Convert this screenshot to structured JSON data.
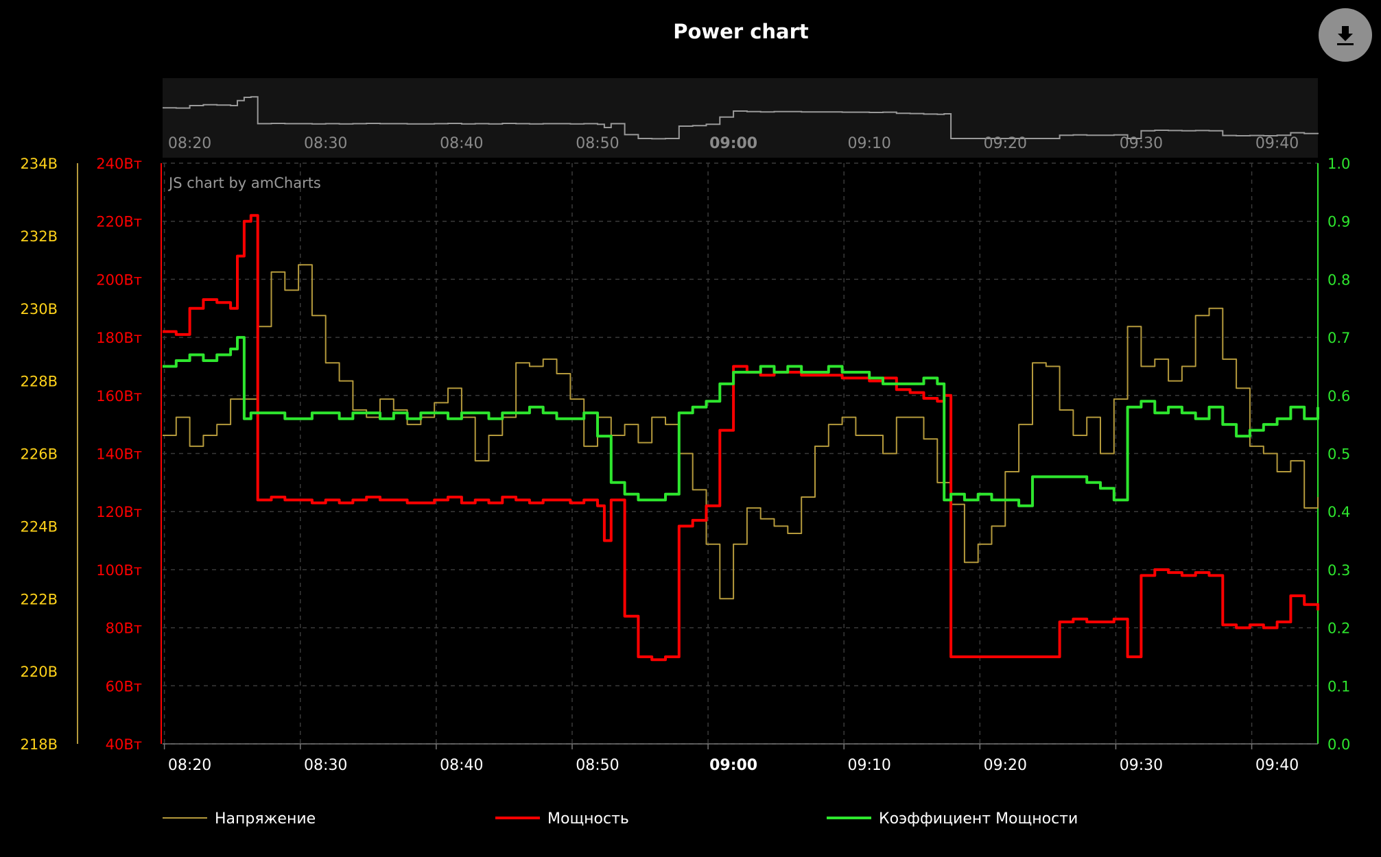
{
  "title": "Power chart",
  "credit": "JS chart by amCharts",
  "export_icon": "download-icon",
  "colors": {
    "background": "#000000",
    "voltage": "#b59a3c",
    "voltage_axis": "#ffd21a",
    "power": "#ff0000",
    "power_factor": "#2ee62e",
    "grid": "#3a3a3a",
    "scrollbar_bg": "#141414",
    "scrollbar_line": "#9a9a9a"
  },
  "chart_data": {
    "type": "line",
    "title": "Power chart",
    "x_ticks": [
      "08:20",
      "08:30",
      "08:40",
      "08:50",
      "09:00",
      "09:10",
      "09:20",
      "09:30",
      "09:40"
    ],
    "x_bold_tick": "09:00",
    "xlim": [
      "08:18",
      "09:43"
    ],
    "axes": {
      "voltage": {
        "ticks": [
          "218В",
          "220В",
          "222В",
          "224В",
          "226В",
          "228В",
          "230В",
          "232В",
          "234В"
        ],
        "ylim": [
          218,
          234
        ],
        "unit": "В"
      },
      "power": {
        "ticks": [
          "40Вт",
          "60Вт",
          "80Вт",
          "100Вт",
          "120Вт",
          "140Вт",
          "160Вт",
          "180Вт",
          "200Вт",
          "220Вт",
          "240Вт"
        ],
        "ylim": [
          40,
          240
        ],
        "unit": "Вт"
      },
      "power_factor": {
        "ticks": [
          "0.0",
          "0.1",
          "0.2",
          "0.3",
          "0.4",
          "0.5",
          "0.6",
          "0.7",
          "0.8",
          "0.9",
          "1.0"
        ],
        "ylim": [
          0,
          1
        ]
      }
    },
    "grid": true,
    "legend_position": "bottom",
    "series": [
      {
        "name": "Напряжение",
        "axis": "voltage",
        "x": [
          "08:18",
          "08:19",
          "08:20",
          "08:21",
          "08:22",
          "08:23",
          "08:24",
          "08:25",
          "08:26",
          "08:27",
          "08:28",
          "08:29",
          "08:30",
          "08:31",
          "08:32",
          "08:33",
          "08:34",
          "08:35",
          "08:36",
          "08:37",
          "08:38",
          "08:39",
          "08:40",
          "08:41",
          "08:42",
          "08:43",
          "08:44",
          "08:45",
          "08:46",
          "08:47",
          "08:48",
          "08:49",
          "08:50",
          "08:51",
          "08:52",
          "08:53",
          "08:54",
          "08:55",
          "08:56",
          "08:57",
          "08:58",
          "08:59",
          "09:00",
          "09:01",
          "09:02",
          "09:03",
          "09:04",
          "09:05",
          "09:06",
          "09:07",
          "09:08",
          "09:09",
          "09:10",
          "09:11",
          "09:12",
          "09:13",
          "09:14",
          "09:15",
          "09:16",
          "09:17",
          "09:18",
          "09:19",
          "09:20",
          "09:21",
          "09:22",
          "09:23",
          "09:24",
          "09:25",
          "09:26",
          "09:27",
          "09:28",
          "09:29",
          "09:30",
          "09:31",
          "09:32",
          "09:33",
          "09:34",
          "09:35",
          "09:36",
          "09:37",
          "09:38",
          "09:39",
          "09:40",
          "09:41",
          "09:42",
          "09:43"
        ],
        "values": [
          226.5,
          227.0,
          226.2,
          226.5,
          226.8,
          227.5,
          227.5,
          229.5,
          231.0,
          230.5,
          231.2,
          229.8,
          228.5,
          228.0,
          227.2,
          227.0,
          227.5,
          227.2,
          226.8,
          227.0,
          227.4,
          227.8,
          227.0,
          225.8,
          226.5,
          227.0,
          228.5,
          228.4,
          228.6,
          228.2,
          227.5,
          226.2,
          227.0,
          226.5,
          226.8,
          226.3,
          227.0,
          226.8,
          226.0,
          225.0,
          223.5,
          222.0,
          223.5,
          224.5,
          224.2,
          224.0,
          223.8,
          224.8,
          226.2,
          226.8,
          227.0,
          226.5,
          226.5,
          226.0,
          227.0,
          227.0,
          226.4,
          225.2,
          224.6,
          223.0,
          223.5,
          224.0,
          225.5,
          226.8,
          228.5,
          228.4,
          227.2,
          226.5,
          227.0,
          226.0,
          227.5,
          229.5,
          228.4,
          228.6,
          228.0,
          228.4,
          229.8,
          230.0,
          228.6,
          227.8,
          226.2,
          226.0,
          225.5,
          225.8,
          224.5,
          224.8
        ]
      },
      {
        "name": "Мощность",
        "axis": "power",
        "x": [
          "08:18",
          "08:19",
          "08:20",
          "08:21",
          "08:22",
          "08:23",
          "08:23.5",
          "08:24",
          "08:24.5",
          "08:25",
          "08:26",
          "08:27",
          "08:28",
          "08:29",
          "08:30",
          "08:31",
          "08:32",
          "08:33",
          "08:34",
          "08:35",
          "08:36",
          "08:37",
          "08:38",
          "08:39",
          "08:40",
          "08:41",
          "08:42",
          "08:43",
          "08:44",
          "08:45",
          "08:46",
          "08:47",
          "08:48",
          "08:49",
          "08:50",
          "08:50.5",
          "08:51",
          "08:52",
          "08:53",
          "08:54",
          "08:55",
          "08:56",
          "08:57",
          "08:58",
          "08:59",
          "09:00",
          "09:01",
          "09:02",
          "09:03",
          "09:04",
          "09:05",
          "09:06",
          "09:07",
          "09:08",
          "09:09",
          "09:10",
          "09:11",
          "09:12",
          "09:13",
          "09:14",
          "09:15",
          "09:15.5",
          "09:16",
          "09:17",
          "09:18",
          "09:19",
          "09:20",
          "09:21",
          "09:22",
          "09:23",
          "09:24",
          "09:25",
          "09:26",
          "09:27",
          "09:28",
          "09:29",
          "09:30",
          "09:31",
          "09:32",
          "09:33",
          "09:34",
          "09:35",
          "09:36",
          "09:37",
          "09:38",
          "09:39",
          "09:40",
          "09:41",
          "09:42",
          "09:43"
        ],
        "values": [
          182,
          181,
          190,
          193,
          192,
          190,
          208,
          220,
          222,
          124,
          125,
          124,
          124,
          123,
          124,
          123,
          124,
          125,
          124,
          124,
          123,
          123,
          124,
          125,
          123,
          124,
          123,
          125,
          124,
          123,
          124,
          124,
          123,
          124,
          122,
          110,
          124,
          84,
          70,
          69,
          70,
          115,
          117,
          122,
          148,
          170,
          168,
          167,
          168,
          168,
          167,
          167,
          167,
          166,
          166,
          165,
          166,
          162,
          161,
          159,
          158,
          160,
          70,
          70,
          70,
          70,
          70,
          70,
          70,
          70,
          82,
          83,
          82,
          82,
          83,
          70,
          98,
          100,
          99,
          98,
          99,
          98,
          81,
          80,
          81,
          80,
          82,
          91,
          88,
          86
        ]
      },
      {
        "name": "Коэффициент Мощности",
        "axis": "power_factor",
        "x": [
          "08:18",
          "08:19",
          "08:20",
          "08:21",
          "08:22",
          "08:23",
          "08:23.5",
          "08:24",
          "08:24.5",
          "08:25",
          "08:26",
          "08:27",
          "08:28",
          "08:29",
          "08:30",
          "08:31",
          "08:32",
          "08:33",
          "08:34",
          "08:35",
          "08:36",
          "08:37",
          "08:38",
          "08:39",
          "08:40",
          "08:41",
          "08:42",
          "08:43",
          "08:44",
          "08:45",
          "08:46",
          "08:47",
          "08:48",
          "08:49",
          "08:50",
          "08:51",
          "08:52",
          "08:53",
          "08:54",
          "08:55",
          "08:56",
          "08:57",
          "08:58",
          "08:59",
          "09:00",
          "09:01",
          "09:02",
          "09:03",
          "09:04",
          "09:05",
          "09:06",
          "09:07",
          "09:08",
          "09:09",
          "09:10",
          "09:11",
          "09:12",
          "09:13",
          "09:14",
          "09:15",
          "09:15.5",
          "09:16",
          "09:17",
          "09:18",
          "09:19",
          "09:20",
          "09:21",
          "09:22",
          "09:23",
          "09:24",
          "09:25",
          "09:26",
          "09:27",
          "09:28",
          "09:29",
          "09:30",
          "09:31",
          "09:32",
          "09:33",
          "09:34",
          "09:35",
          "09:36",
          "09:37",
          "09:38",
          "09:39",
          "09:40",
          "09:41",
          "09:42",
          "09:43"
        ],
        "values": [
          0.65,
          0.66,
          0.67,
          0.66,
          0.67,
          0.68,
          0.7,
          0.56,
          0.57,
          0.57,
          0.57,
          0.56,
          0.56,
          0.57,
          0.57,
          0.56,
          0.57,
          0.57,
          0.56,
          0.57,
          0.56,
          0.57,
          0.57,
          0.56,
          0.57,
          0.57,
          0.56,
          0.57,
          0.57,
          0.58,
          0.57,
          0.56,
          0.56,
          0.57,
          0.53,
          0.45,
          0.43,
          0.42,
          0.42,
          0.43,
          0.57,
          0.58,
          0.59,
          0.62,
          0.64,
          0.64,
          0.65,
          0.64,
          0.65,
          0.64,
          0.64,
          0.65,
          0.64,
          0.64,
          0.63,
          0.62,
          0.62,
          0.62,
          0.63,
          0.62,
          0.42,
          0.43,
          0.42,
          0.43,
          0.42,
          0.42,
          0.41,
          0.46,
          0.46,
          0.46,
          0.46,
          0.45,
          0.44,
          0.42,
          0.58,
          0.59,
          0.57,
          0.58,
          0.57,
          0.56,
          0.58,
          0.55,
          0.53,
          0.54,
          0.55,
          0.56,
          0.58,
          0.56,
          0.58
        ]
      }
    ]
  }
}
